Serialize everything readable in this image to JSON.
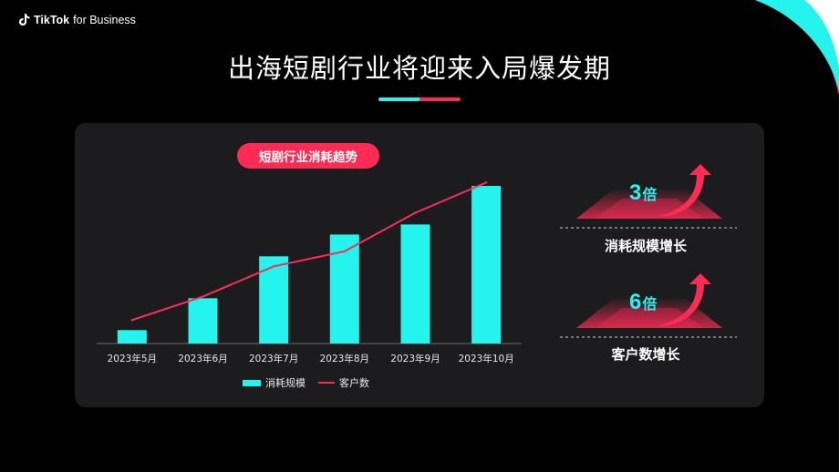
{
  "brand": {
    "name": "TikTok",
    "tagline": "for Business"
  },
  "page": {
    "title": "出海短剧行业将迎来入局爆发期"
  },
  "colors": {
    "cyan": "#25f4ee",
    "pink": "#fe2c55",
    "panel": "#1c1c1e",
    "background": "#000000"
  },
  "chart_badge": "短剧行业消耗趋势",
  "chart_data": {
    "type": "bar",
    "title": "短剧行业消耗趋势",
    "categories": [
      "2023年5月",
      "2023年6月",
      "2023年7月",
      "2023年8月",
      "2023年9月",
      "2023年10月"
    ],
    "series": [
      {
        "name": "消耗规模",
        "type": "bar",
        "color": "#25f4ee",
        "values": [
          8,
          27,
          52,
          65,
          71,
          94
        ]
      },
      {
        "name": "客户数",
        "type": "line",
        "color": "#fe2c55",
        "values": [
          14,
          28,
          46,
          55,
          78,
          96
        ]
      }
    ],
    "ylim": [
      0,
      100
    ],
    "xlabel": "",
    "ylabel": "",
    "grid": false,
    "legend": "bottom"
  },
  "stats": [
    {
      "value": "3",
      "unit": "倍",
      "label": "消耗规模增长",
      "icon": "arrow-up-icon"
    },
    {
      "value": "6",
      "unit": "倍",
      "label": "客户数增长",
      "icon": "arrow-up-icon"
    }
  ]
}
